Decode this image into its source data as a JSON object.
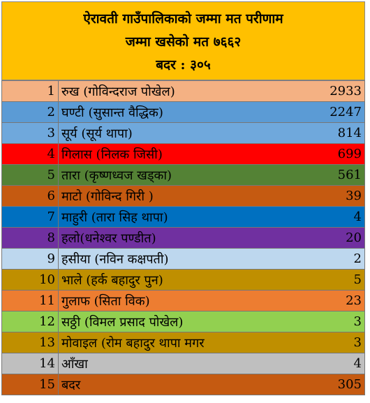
{
  "header": {
    "lines": [
      "ऐरावती गाउँपालिकाको जम्मा मत परीणाम",
      "जम्मा खसेको मत ७६६२",
      "बदर : ३०५"
    ]
  },
  "table": {
    "rows": [
      [
        1,
        "रुख (गोविन्दराज पोखेल)",
        2933
      ],
      [
        2,
        "घण्टी (सुसान्त वैद्धिक)",
        2247
      ],
      [
        3,
        "सूर्य (सूर्य थापा)",
        814
      ],
      [
        4,
        "गिलास (निलक जिसी)",
        699
      ],
      [
        5,
        "तारा (कृष्णध्वज खड्का)",
        561
      ],
      [
        6,
        "माटो (गोविन्द गिरी )",
        39
      ],
      [
        7,
        "माहुरी (तारा सिह थापा)",
        4
      ],
      [
        8,
        "हलो(धनेश्वर पण्डीत)",
        20
      ],
      [
        9,
        "हसीया (नविन कक्षपती)",
        2
      ],
      [
        10,
        "भाले (हर्क बहादुर पुन)",
        5
      ],
      [
        11,
        "गुलाफ (सिता विक)",
        23
      ],
      [
        12,
        "सठ्ठी (विमल प्रसाद पोखेल)",
        3
      ],
      [
        13,
        "मोवाइल (रोम बहादुर थापा मगर",
        3
      ],
      [
        14,
        "आँखा",
        4
      ],
      [
        15,
        "बदर",
        305
      ]
    ]
  }
}
